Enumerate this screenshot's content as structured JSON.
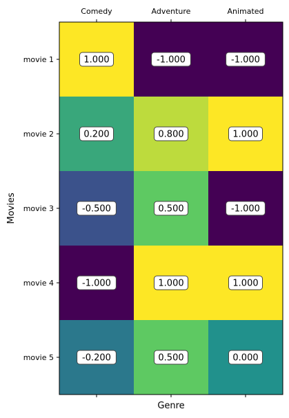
{
  "chart_data": {
    "type": "heatmap",
    "title": "",
    "xlabel": "Genre",
    "ylabel": "Movies",
    "columns": [
      "Comedy",
      "Adventure",
      "Animated"
    ],
    "rows": [
      "movie 1",
      "movie 2",
      "movie 3",
      "movie 4",
      "movie 5"
    ],
    "values": [
      [
        1.0,
        -1.0,
        -1.0
      ],
      [
        0.2,
        0.8,
        1.0
      ],
      [
        -0.5,
        0.5,
        -1.0
      ],
      [
        -1.0,
        1.0,
        1.0
      ],
      [
        -0.2,
        0.5,
        0.0
      ]
    ],
    "value_labels": [
      [
        "1.000",
        "-1.000",
        "-1.000"
      ],
      [
        "0.200",
        "0.800",
        "1.000"
      ],
      [
        "-0.500",
        "0.500",
        "-1.000"
      ],
      [
        "-1.000",
        "1.000",
        "1.000"
      ],
      [
        "-0.200",
        "0.500",
        "0.000"
      ]
    ],
    "value_range": [
      -1,
      1
    ],
    "colormap": "viridis",
    "x_tick_position": "top",
    "grid": false
  }
}
